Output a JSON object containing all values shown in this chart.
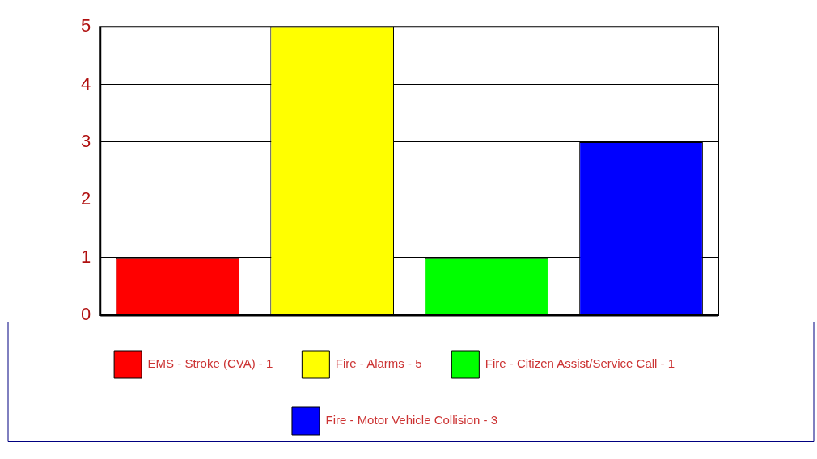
{
  "chart_data": {
    "type": "bar",
    "categories": [
      null,
      null,
      null,
      null
    ],
    "series": [
      {
        "name": "EMS - Stroke (CVA) - 1",
        "color": "#ff0000",
        "values": [
          1,
          null,
          null,
          null
        ]
      },
      {
        "name": "Fire - Alarms - 5",
        "color": "#ffff00",
        "values": [
          null,
          5,
          null,
          null
        ]
      },
      {
        "name": "Fire - Citizen Assist/Service Call - 1",
        "color": "#00ff00",
        "values": [
          null,
          null,
          1,
          null
        ]
      },
      {
        "name": "Fire - Motor Vehicle Collision - 3",
        "color": "#0000ff",
        "values": [
          null,
          null,
          null,
          3
        ]
      }
    ],
    "ylim": [
      0,
      5
    ],
    "yticks": [
      0,
      1,
      2,
      3,
      4,
      5
    ],
    "grid": "y",
    "legend": "bottom"
  }
}
